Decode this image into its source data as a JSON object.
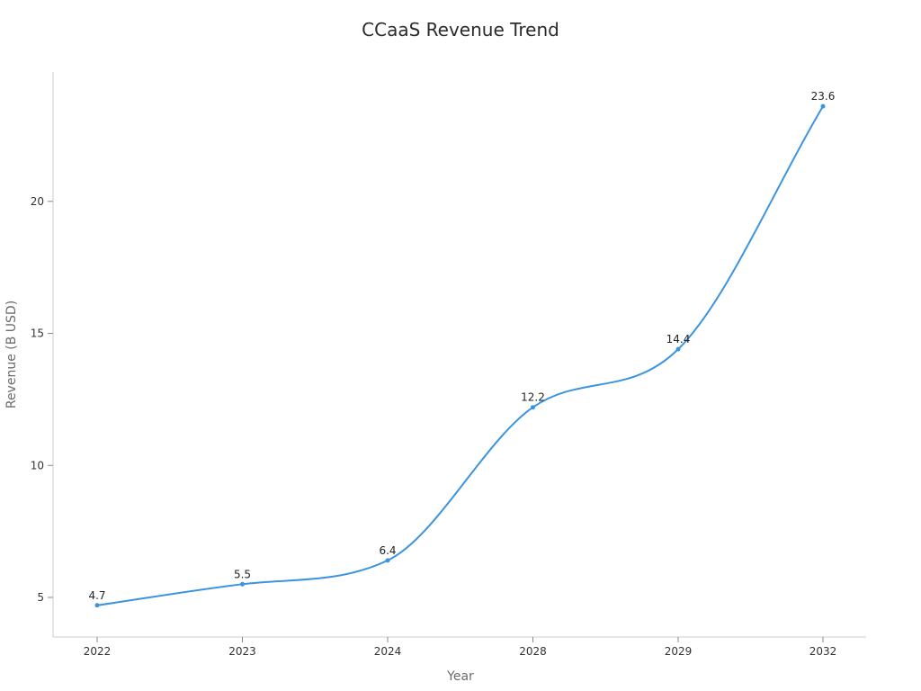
{
  "chart_data": {
    "type": "line",
    "title": "CCaaS Revenue Trend",
    "xlabel": "Year",
    "ylabel": "Revenue (B USD)",
    "categories": [
      "2022",
      "2023",
      "2024",
      "2028",
      "2029",
      "2032"
    ],
    "series": [
      {
        "values": [
          4.7,
          5.5,
          6.4,
          12.2,
          14.4,
          23.6
        ],
        "color": "#3b94e0"
      }
    ],
    "yticks": [
      5,
      10,
      15,
      20
    ],
    "ylim": [
      3.5,
      24.9
    ],
    "grid": false,
    "legend": "none",
    "smooth": true,
    "markers": true,
    "data_labels": true
  }
}
